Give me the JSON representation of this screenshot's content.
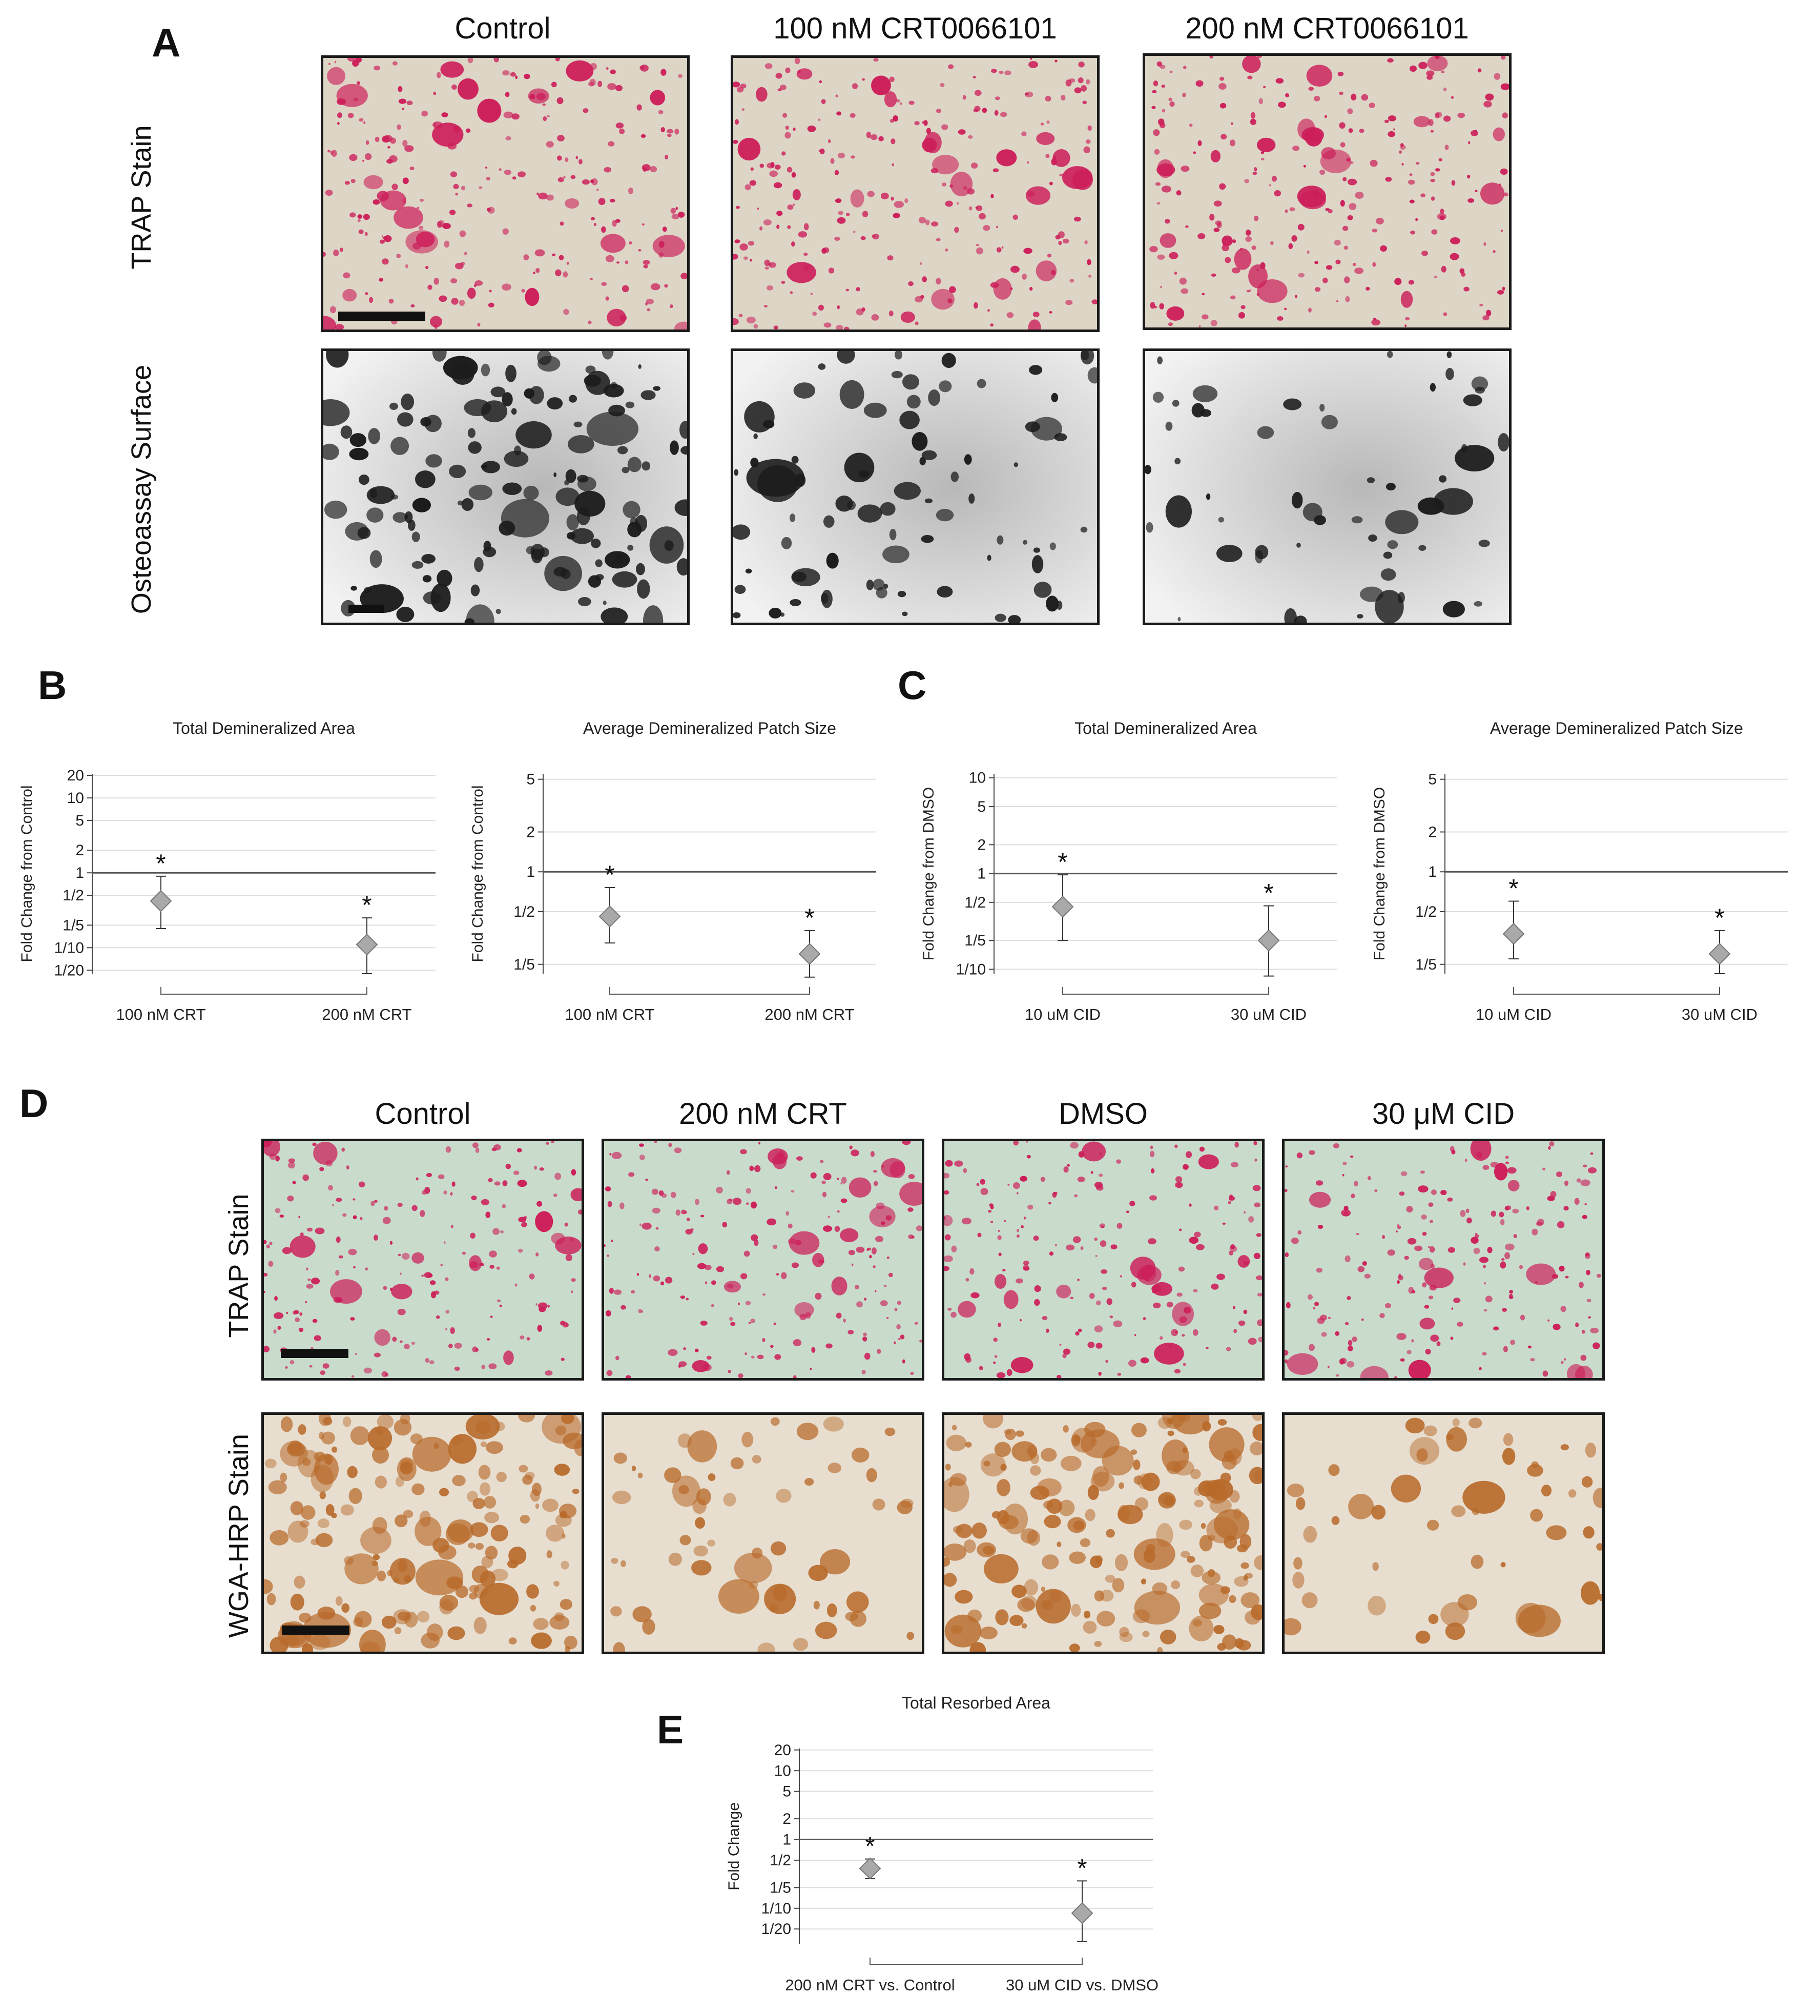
{
  "panels": {
    "A": {
      "letter": "A",
      "columns": [
        "Control",
        "100 nM  CRT0066101",
        "200 nM  CRT0066101"
      ],
      "rows": [
        "TRAP Stain",
        "Osteoassay Surface"
      ]
    },
    "B": {
      "letter": "B"
    },
    "C": {
      "letter": "C"
    },
    "D": {
      "letter": "D",
      "columns": [
        "Control",
        "200 nM CRT",
        "DMSO",
        "30 μM CID"
      ],
      "rows": [
        "TRAP Stain",
        "WGA-HRP Stain"
      ]
    },
    "E": {
      "letter": "E"
    }
  },
  "colors": {
    "trap_stain": "#cc1f5a",
    "trap_bg_A": "#ddd5c6",
    "trap_bg_D": "#c9dccc",
    "osteo_dark": "#1c1c1c",
    "wga_brown": "#b86a2a",
    "wga_bg": "#e7ded0",
    "marker_fill": "#a9a9a9",
    "reference_line": "#555555"
  },
  "chart_data": [
    {
      "id": "B1",
      "type": "scatter",
      "title": "Total Demineralized Area",
      "ylabel": "Fold Change from Control",
      "yscale": "log",
      "yticks": [
        "20",
        "10",
        "5",
        "2",
        "1",
        "1/2",
        "1/5",
        "1/10",
        "1/20"
      ],
      "yticks_values": [
        20,
        10,
        5,
        2,
        1,
        0.5,
        0.2,
        0.1,
        0.05
      ],
      "ylim": [
        0.045,
        21
      ],
      "reference_line": 1,
      "categories": [
        "100 nM CRT",
        "200 nM CRT"
      ],
      "values": [
        0.42,
        0.11
      ],
      "error_low": [
        0.18,
        0.045
      ],
      "error_high": [
        0.9,
        0.25
      ],
      "annotations": [
        "*",
        "*"
      ]
    },
    {
      "id": "B2",
      "type": "scatter",
      "title": "Average Demineralized Patch Size",
      "ylabel": "Fold Change from Control",
      "yscale": "log",
      "yticks": [
        "5",
        "2",
        "1",
        "1/2",
        "1/5"
      ],
      "yticks_values": [
        5,
        2,
        1,
        0.5,
        0.2
      ],
      "ylim": [
        0.17,
        5.5
      ],
      "reference_line": 1,
      "categories": [
        "100 nM CRT",
        "200 nM CRT"
      ],
      "values": [
        0.46,
        0.24
      ],
      "error_low": [
        0.29,
        0.16
      ],
      "error_high": [
        0.76,
        0.36
      ],
      "annotations": [
        "*",
        "*"
      ]
    },
    {
      "id": "C1",
      "type": "scatter",
      "title": "Total Demineralized Area",
      "ylabel": "Fold Change from DMSO",
      "yscale": "log",
      "yticks": [
        "10",
        "5",
        "2",
        "1",
        "1/2",
        "1/5",
        "1/10"
      ],
      "yticks_values": [
        10,
        5,
        2,
        1,
        0.5,
        0.2,
        0.1
      ],
      "ylim": [
        0.09,
        11
      ],
      "reference_line": 1,
      "categories": [
        "10 uM CID",
        "30 uM CID"
      ],
      "values": [
        0.45,
        0.2
      ],
      "error_low": [
        0.2,
        0.085
      ],
      "error_high": [
        0.97,
        0.46
      ],
      "annotations": [
        "*",
        "*"
      ]
    },
    {
      "id": "C2",
      "type": "scatter",
      "title": "Average Demineralized Patch Size",
      "ylabel": "Fold Change from DMSO",
      "yscale": "log",
      "yticks": [
        "5",
        "2",
        "1",
        "1/2",
        "1/5"
      ],
      "yticks_values": [
        5,
        2,
        1,
        0.5,
        0.2
      ],
      "ylim": [
        0.17,
        5.5
      ],
      "reference_line": 1,
      "categories": [
        "10 uM CID",
        "30 uM CID"
      ],
      "values": [
        0.34,
        0.24
      ],
      "error_low": [
        0.22,
        0.17
      ],
      "error_high": [
        0.6,
        0.36
      ],
      "annotations": [
        "*",
        "*"
      ]
    },
    {
      "id": "E",
      "type": "scatter",
      "title": "Total Resorbed Area",
      "ylabel": "Fold Change",
      "yscale": "log",
      "yticks": [
        "20",
        "10",
        "5",
        "2",
        "1",
        "1/2",
        "1/5",
        "1/10",
        "1/20"
      ],
      "yticks_values": [
        20,
        10,
        5,
        2,
        1,
        0.5,
        0.2,
        0.1,
        0.05
      ],
      "ylim": [
        0.03,
        21
      ],
      "reference_line": 1,
      "categories": [
        "200 nM CRT vs. Control",
        "30 uM CID vs. DMSO"
      ],
      "values": [
        0.38,
        0.085
      ],
      "error_low": [
        0.27,
        0.033
      ],
      "error_high": [
        0.52,
        0.25
      ],
      "annotations": [
        "*",
        "*"
      ]
    }
  ]
}
